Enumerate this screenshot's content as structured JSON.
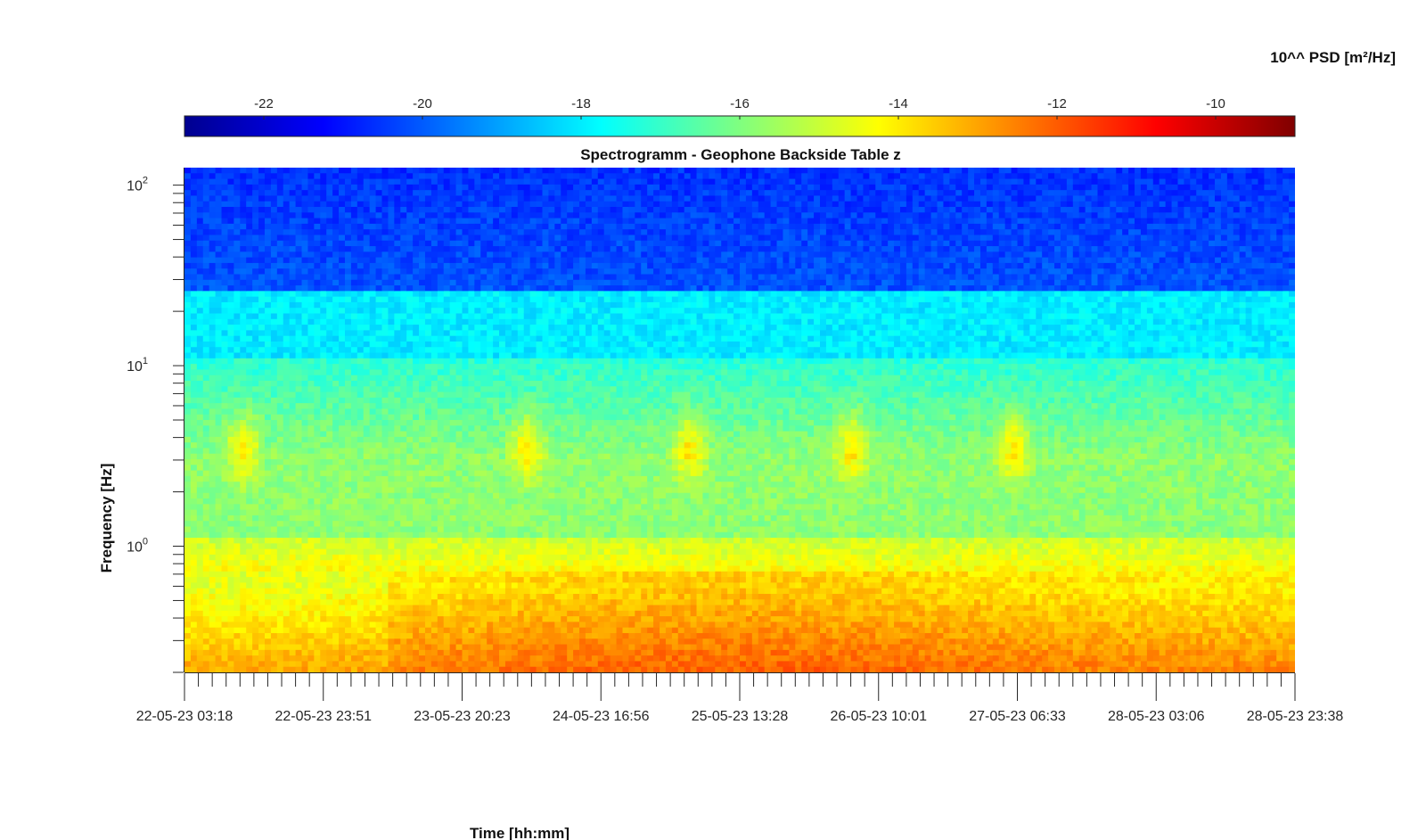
{
  "chart_data": {
    "type": "heatmap",
    "title": "Spectrogramm - Geophone Backside Table z",
    "xlabel": "Time [hh:mm]",
    "ylabel": "Frequency [Hz]",
    "colorbar_label": "10^^ PSD [m²/Hz]",
    "colormap": "jet",
    "color_range": [
      -23,
      -9
    ],
    "colorbar_ticks": [
      "-22",
      "-20",
      "-18",
      "-16",
      "-14",
      "-12",
      "-10"
    ],
    "y_scale": "log",
    "ylim": [
      0.2,
      125
    ],
    "y_ticks": [
      {
        "base": "10",
        "exp": "2"
      },
      {
        "base": "10",
        "exp": "1"
      },
      {
        "base": "10",
        "exp": "0"
      }
    ],
    "x_tick_labels": [
      "22-05-23 03:18",
      "22-05-23 23:51",
      "23-05-23 20:23",
      "24-05-23 16:56",
      "25-05-23 13:28",
      "26-05-23 10:01",
      "27-05-23 06:33",
      "28-05-23 03:06",
      "28-05-23 23:38"
    ],
    "x_range": [
      "22-05-23 03:18",
      "28-05-23 23:38"
    ],
    "frequency_bands": [
      {
        "freq_range": [
          30,
          125
        ],
        "log_psd": -20.5
      },
      {
        "freq_range": [
          10,
          25
        ],
        "log_psd": -17.5
      },
      {
        "freq_range": [
          1,
          10
        ],
        "log_psd": -15.5
      },
      {
        "freq_range": [
          0.2,
          0.7
        ],
        "log_psd": -12.5
      }
    ],
    "activity_peaks": [
      {
        "time": "22-05-23 12:00",
        "freq_range": [
          2.5,
          5
        ],
        "log_psd": -12.8
      },
      {
        "time": "24-05-23 06:00",
        "freq_range": [
          2.5,
          5
        ],
        "log_psd": -12.8
      },
      {
        "time": "25-05-23 06:00",
        "freq_range": [
          2.5,
          5
        ],
        "log_psd": -12.8
      },
      {
        "time": "26-05-23 06:00",
        "freq_range": [
          2.5,
          5
        ],
        "log_psd": -12.8
      },
      {
        "time": "27-05-23 06:00",
        "freq_range": [
          2.5,
          5
        ],
        "log_psd": -12.8
      }
    ]
  }
}
